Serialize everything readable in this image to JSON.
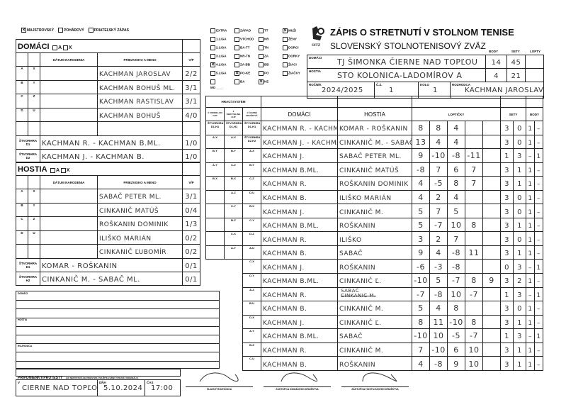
{
  "match_type": [
    {
      "label": "Majstrovský",
      "checked": true
    },
    {
      "label": "Pohárový",
      "checked": false
    },
    {
      "label": "Priateľský zápas",
      "checked": false
    }
  ],
  "leagues": [
    [
      {
        "label": "EXTRA",
        "checked": false
      },
      {
        "label": "ZÁPAD",
        "checked": false
      },
      {
        "label": "TT",
        "checked": false
      },
      {
        "label": "MUŽI",
        "checked": true
      }
    ],
    [
      {
        "label": "1.LIGA",
        "checked": false
      },
      {
        "label": "VÝCHOD",
        "checked": false
      },
      {
        "label": "NR",
        "checked": false
      },
      {
        "label": "ŽENY",
        "checked": false
      }
    ],
    [
      {
        "label": "2.LIGA",
        "checked": false
      },
      {
        "label": "BA-TT",
        "checked": false
      },
      {
        "label": "TN",
        "checked": false
      },
      {
        "label": "DORCI",
        "checked": false
      }
    ],
    [
      {
        "label": "3.LIGA",
        "checked": false
      },
      {
        "label": "NR-TN",
        "checked": false
      },
      {
        "label": "ZA",
        "checked": false
      },
      {
        "label": "DORKY",
        "checked": false
      }
    ],
    [
      {
        "label": "4.LIGA",
        "checked": true
      },
      {
        "label": "ZA-BB",
        "checked": false
      },
      {
        "label": "BB",
        "checked": false
      },
      {
        "label": "ŽIACI",
        "checked": false
      }
    ],
    [
      {
        "label": "5.LIGA",
        "checked": false
      },
      {
        "label": "PO-KE",
        "checked": true
      },
      {
        "label": "PO",
        "checked": false
      },
      {
        "label": "ŽIAČKY",
        "checked": false
      }
    ],
    [
      {
        "label": "",
        "checked": false
      },
      {
        "label": "BA",
        "checked": false
      },
      {
        "label": "KE",
        "checked": true
      },
      null
    ]
  ],
  "mo_label": "MO ____",
  "title": "ZÁPIS O STRETNUTÍ V STOLNOM TENISE",
  "subtitle": "SLOVENSKÝ STOLNOTENISOVÝ ZVÄZ",
  "logo_text": "SSTZ",
  "summary": {
    "cols": [
      "BODY",
      "SETY",
      "LOPTY"
    ],
    "home_label": "DOMÁCI",
    "home_team": "TJ ŠIMONKA ČIERNE NAD TOPĽOU",
    "home_body": "14",
    "home_sety": "45",
    "home_lopty": "",
    "guest_label": "HOSTIA",
    "guest_team": "STO KOLONICA-LADOMÍROV A",
    "guest_body": "4",
    "guest_sety": "21",
    "guest_lopty": "",
    "rocnik_label": "ROČNÍK",
    "rocnik": "2024/2025",
    "cz_label": "Č.Z.",
    "cz": "1",
    "kolo_label": "KOLO",
    "kolo": "1",
    "rozhodca_label": "ROZHODCA",
    "rozhodca": "KACHMAN JAROSLAV"
  },
  "home": {
    "label": "DOMÁCI",
    "opt_a": "A",
    "opt_x": "X",
    "col_date": "DÁTUM NARODENIA",
    "col_name": "PRIEZVISKO A MENO",
    "col_vp": "V/P",
    "players": [
      {
        "l1": "A",
        "l2": "X",
        "name": "KACHMAN JAROSLAV",
        "vp": "2/2"
      },
      {
        "l1": "B",
        "l2": "Y",
        "name": "KACHMAN BOHUŠ ML.",
        "vp": "3/1"
      },
      {
        "l1": "C",
        "l2": "Z",
        "name": "KACHMAN RASTISLAV",
        "vp": "3/1"
      },
      {
        "l1": "D",
        "l2": "U",
        "name": "KACHMAN BOHUŠ",
        "vp": "4/0"
      },
      {
        "l1": "",
        "l2": "",
        "name": "",
        "vp": ""
      }
    ],
    "doubles": [
      {
        "label": "ŠTVORHRA D1",
        "name": "KACHMAN R. - KACHMAN B.ML.",
        "vp": "1/0"
      },
      {
        "label": "ŠTVORHRA D2",
        "name": "KACHMAN J. - KACHMAN B.",
        "vp": "1/0"
      }
    ]
  },
  "guest": {
    "label": "HOSTIA",
    "opt_a": "A",
    "opt_x": "X",
    "col_date": "DÁTUM NARODENIA",
    "col_name": "PRIEZVISKO A MENO",
    "col_vp": "V/P",
    "players": [
      {
        "l1": "A",
        "l2": "X",
        "name": "SABAČ PETER ML.",
        "vp": "3/1"
      },
      {
        "l1": "B",
        "l2": "Y",
        "name": "CINKANIČ MATÚŠ",
        "vp": "0/4"
      },
      {
        "l1": "C",
        "l2": "Z",
        "name": "ROŠKANIN DOMINIK",
        "vp": "1/3"
      },
      {
        "l1": "D",
        "l2": "U",
        "name": "ILIŠKO MARIÁN",
        "vp": "0/2"
      },
      {
        "l1": "",
        "l2": "",
        "name": "CINKANIČ ĽUBOMÍR",
        "vp": "0/2"
      }
    ],
    "doubles": [
      {
        "label": "ŠTVORHRA D1",
        "name": "KOMAR - ROŠKANIN",
        "vp": "0/1"
      },
      {
        "label": "ŠTVORHRA H2",
        "name": "CINKANIČ M. - SABAČ ML.",
        "vp": "0/1"
      }
    ]
  },
  "matches_header": {
    "system": "HRACÍ SYSTÉM",
    "sys_cols": [
      "2 Corbillon Cup",
      "3 Swaythling Cup",
      "4 členné družstvá",
      "4členné"
    ],
    "domaci": "DOMÁCI",
    "hostia": "HOSTIA",
    "loptičky": "LOPTIČKY",
    "sety": "SETY",
    "body": "BODY"
  },
  "matches": [
    {
      "s": [
        "ŠTVORHRA D1-H1",
        "ŠTVORHRA D1-H1",
        "ŠTVORHRA D1-H1"
      ],
      "home": "KACHMAN R. - KACHMAN B.ML.",
      "guest": "KOMAR - ROŠKANIN",
      "balls": [
        "8",
        "8",
        "4",
        "",
        ""
      ],
      "sets": [
        "3",
        "0"
      ],
      "pts": [
        "1",
        "–"
      ]
    },
    {
      "s": [
        "A-X",
        "A-X",
        "ŠTVORHRA D2-H2"
      ],
      "home": "KACHMAN J. - KACHMAN B.",
      "guest": "CINKANIČ M. - SABAČ",
      "balls": [
        "13",
        "4",
        "4",
        "",
        ""
      ],
      "sets": [
        "3",
        "0"
      ],
      "pts": [
        "1",
        "–"
      ]
    },
    {
      "s": [
        "B-Y",
        "B-Y",
        "A-X"
      ],
      "home": "KACHMAN J.",
      "guest": "SABAČ PETER ML.",
      "balls": [
        "9",
        "-10",
        "-8",
        "-11",
        ""
      ],
      "sets": [
        "1",
        "3"
      ],
      "pts": [
        "–",
        "1"
      ]
    },
    {
      "s": [
        "A-Y",
        "C-Z",
        "B-Y"
      ],
      "home": "KACHMAN B.ML.",
      "guest": "CINKANIČ MATÚŠ",
      "balls": [
        "-8",
        "7",
        "6",
        "7",
        ""
      ],
      "sets": [
        "3",
        "1"
      ],
      "pts": [
        "1",
        "–"
      ]
    },
    {
      "s": [
        "B-X",
        "B-X",
        "C-Z"
      ],
      "home": "KACHMAN R.",
      "guest": "ROŠKANIN DOMINIK",
      "balls": [
        "4",
        "-5",
        "8",
        "7",
        ""
      ],
      "sets": [
        "3",
        "1"
      ],
      "pts": [
        "1",
        "–"
      ]
    },
    {
      "s": [
        "",
        "A-Z",
        "D-U"
      ],
      "home": "KACHMAN B.",
      "guest": "ILIŠKO MARIÁN",
      "balls": [
        "4",
        "2",
        "4",
        "",
        ""
      ],
      "sets": [
        "3",
        "0"
      ],
      "pts": [
        "1",
        "–"
      ]
    },
    {
      "s": [
        "",
        "C-Y",
        "B-X"
      ],
      "home": "KACHMAN J.",
      "guest": "CINKANIČ M.",
      "balls": [
        "5",
        "7",
        "5",
        "",
        ""
      ],
      "sets": [
        "3",
        "0"
      ],
      "pts": [
        "1",
        "–"
      ]
    },
    {
      "s": [
        "",
        "B-Z",
        "C-Y"
      ],
      "home": "KACHMAN B.ML.",
      "guest": "ROŠKANIN",
      "balls": [
        "5",
        "-7",
        "10",
        "8",
        ""
      ],
      "sets": [
        "3",
        "1"
      ],
      "pts": [
        "1",
        "–"
      ]
    },
    {
      "s": [
        "",
        "C-X",
        "D-Z"
      ],
      "home": "KACHMAN R.",
      "guest": "ILIŠKO",
      "balls": [
        "3",
        "2",
        "7",
        "",
        ""
      ],
      "sets": [
        "3",
        "0"
      ],
      "pts": [
        "1",
        "–"
      ]
    },
    {
      "s": [
        "",
        "A-Y",
        "A-U"
      ],
      "home": "KACHMAN B.",
      "guest": "SABAČ",
      "balls": [
        "9",
        "4",
        "-8",
        "11",
        ""
      ],
      "sets": [
        "3",
        "1"
      ],
      "pts": [
        "1",
        "–"
      ]
    },
    {
      "s": [
        null,
        null,
        "C-X"
      ],
      "home": "KACHMAN J.",
      "guest": "ROŠKANIN",
      "balls": [
        "-6",
        "-3",
        "-8",
        "",
        ""
      ],
      "sets": [
        "0",
        "3"
      ],
      "pts": [
        "–",
        "1"
      ]
    },
    {
      "s": [
        null,
        null,
        "D-Y"
      ],
      "home": "KACHMAN B.ML.",
      "guest": "CINKANIČ Ľ.",
      "balls": [
        "-10",
        "5",
        "-7",
        "8",
        "9"
      ],
      "sets": [
        "3",
        "2"
      ],
      "pts": [
        "1",
        "–"
      ]
    },
    {
      "s": [
        null,
        null,
        "A-Z"
      ],
      "home": "KACHMAN R.",
      "guest": "SABAČ",
      "guest_struck": "CINKANIČ M.",
      "balls": [
        "-7",
        "-8",
        "10",
        "-7",
        ""
      ],
      "sets": [
        "1",
        "3"
      ],
      "pts": [
        "–",
        "1"
      ]
    },
    {
      "s": [
        null,
        null,
        "B-U"
      ],
      "home": "KACHMAN B.",
      "guest": "CINKANIČ M.",
      "balls": [
        "5",
        "4",
        "8",
        "",
        ""
      ],
      "sets": [
        "3",
        "0"
      ],
      "pts": [
        "1",
        "–"
      ]
    },
    {
      "s": [
        null,
        null,
        "D-X"
      ],
      "home": "KACHMAN J.",
      "guest": "CINKANIČ Ľ.",
      "balls": [
        "8",
        "11",
        "-10",
        "8",
        ""
      ],
      "sets": [
        "3",
        "1"
      ],
      "pts": [
        "1",
        "–"
      ]
    },
    {
      "s": [
        null,
        null,
        "A-Y"
      ],
      "home": "KACHMAN B.ML.",
      "guest": "SABAČ",
      "balls": [
        "-10",
        "10",
        "-5",
        "-7",
        ""
      ],
      "sets": [
        "1",
        "3"
      ],
      "pts": [
        "–",
        "1"
      ]
    },
    {
      "s": [
        null,
        null,
        "B-Z"
      ],
      "home": "KACHMAN R.",
      "guest": "CINKANIČ M.",
      "balls": [
        "7",
        "-10",
        "6",
        "10",
        ""
      ],
      "sets": [
        "3",
        "1"
      ],
      "pts": [
        "1",
        "–"
      ]
    },
    {
      "s": [
        null,
        null,
        "C-U"
      ],
      "home": "KACHMAN B.",
      "guest": "ROŠKANIN",
      "balls": [
        "4",
        "-8",
        "9",
        "10",
        ""
      ],
      "sets": [
        "3",
        "1"
      ],
      "pts": [
        "1",
        "–"
      ]
    }
  ],
  "notes": {
    "domaci": "DOMÁCI",
    "hostia": "HOSTIA",
    "rozhodca": "ROZHODCA",
    "remarks": "PRIPOMIENKY/PROTESTY",
    "remarks_hint": "(AK NEPOSTAČUJE PRIESTOR, POUŽITE ZADNÚ STRANU ORIGINÁLU)"
  },
  "footer": {
    "v_label": "V",
    "place": "ČIERNE NAD TOPĽOU",
    "dna_label": "DŇA",
    "date": "5.10.2024",
    "cas_label": "ČAS",
    "time": "17:00",
    "sig1": "HLAVNÝ ROZHODCA",
    "sig2": "ZÁSTUPCA DOMÁCEHO DRUŽSTVA",
    "sig3": "ZÁSTUPCA HOSTUJÚCEHO DRUŽSTVA"
  }
}
